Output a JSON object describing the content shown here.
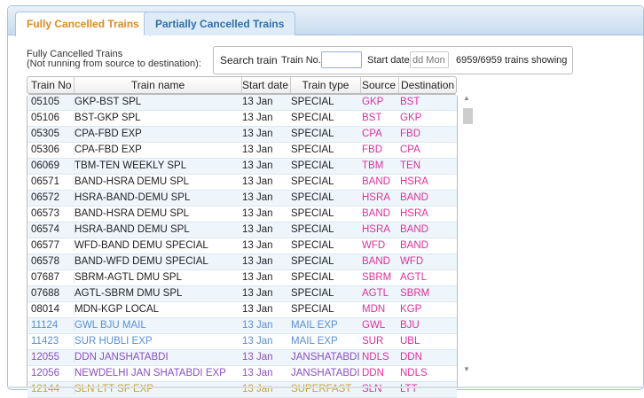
{
  "tabs": [
    {
      "label": "Fully Cancelled Trains",
      "active": true
    },
    {
      "label": "Partially Cancelled Trains",
      "active": false
    }
  ],
  "description": {
    "line1": "Fully Cancelled Trains",
    "line2": "(Not running from source to destination):"
  },
  "search": {
    "label": "Search train",
    "train_no_label": "Train No.",
    "train_no_value": "",
    "start_date_label": "Start date",
    "start_date_placeholder": "dd Mon",
    "count": "6959/6959 trains showing"
  },
  "columns": [
    "Train No",
    "Train name",
    "Start date",
    "Train type",
    "Source",
    "Destination"
  ],
  "colors": {
    "special": "#222222",
    "mail_exp": "#5b8fd6",
    "janshatabdi": "#8a4fc0",
    "superfast": "#c9a020",
    "station": "#e0309a",
    "active_tab": "#e08a1e"
  },
  "rows": [
    [
      "05105",
      "GKP-BST SPL",
      "13 Jan",
      "SPECIAL",
      "GKP",
      "BST"
    ],
    [
      "05106",
      "BST-GKP SPL",
      "13 Jan",
      "SPECIAL",
      "BST",
      "GKP"
    ],
    [
      "05305",
      "CPA-FBD EXP",
      "13 Jan",
      "SPECIAL",
      "CPA",
      "FBD"
    ],
    [
      "05306",
      "CPA-FBD EXP",
      "13 Jan",
      "SPECIAL",
      "FBD",
      "CPA"
    ],
    [
      "06069",
      "TBM-TEN WEEKLY SPL",
      "13 Jan",
      "SPECIAL",
      "TBM",
      "TEN"
    ],
    [
      "06571",
      "BAND-HSRA DEMU SPL",
      "13 Jan",
      "SPECIAL",
      "BAND",
      "HSRA"
    ],
    [
      "06572",
      "HSRA-BAND-DEMU SPL",
      "13 Jan",
      "SPECIAL",
      "HSRA",
      "BAND"
    ],
    [
      "06573",
      "BAND-HSRA DEMU SPL",
      "13 Jan",
      "SPECIAL",
      "BAND",
      "HSRA"
    ],
    [
      "06574",
      "HSRA-BAND DEMU SPL",
      "13 Jan",
      "SPECIAL",
      "HSRA",
      "BAND"
    ],
    [
      "06577",
      "WFD-BAND DEMU SPECIAL",
      "13 Jan",
      "SPECIAL",
      "WFD",
      "BAND"
    ],
    [
      "06578",
      "BAND-WFD DEMU SPECIAL",
      "13 Jan",
      "SPECIAL",
      "BAND",
      "WFD"
    ],
    [
      "07687",
      "SBRM-AGTL DMU SPL",
      "13 Jan",
      "SPECIAL",
      "SBRM",
      "AGTL"
    ],
    [
      "07688",
      "AGTL-SBRM DMU SPL",
      "13 Jan",
      "SPECIAL",
      "AGTL",
      "SBRM"
    ],
    [
      "08014",
      "MDN-KGP LOCAL",
      "13 Jan",
      "SPECIAL",
      "MDN",
      "KGP"
    ],
    [
      "11124",
      "GWL BJU MAIL",
      "13 Jan",
      "MAIL EXP",
      "GWL",
      "BJU"
    ],
    [
      "11423",
      "SUR HUBLI EXP",
      "13 Jan",
      "MAIL EXP",
      "SUR",
      "UBL"
    ],
    [
      "12055",
      "DDN JANSHATABDI",
      "13 Jan",
      "JANSHATABDI",
      "NDLS",
      "DDN"
    ],
    [
      "12056",
      "NEWDELHI JAN SHATABDI EXP",
      "13 Jan",
      "JANSHATABDI",
      "DDN",
      "NDLS"
    ],
    [
      "12144",
      "SLN LTT SF EXP",
      "13 Jan",
      "SUPERFAST",
      "SLN",
      "LTT"
    ]
  ]
}
